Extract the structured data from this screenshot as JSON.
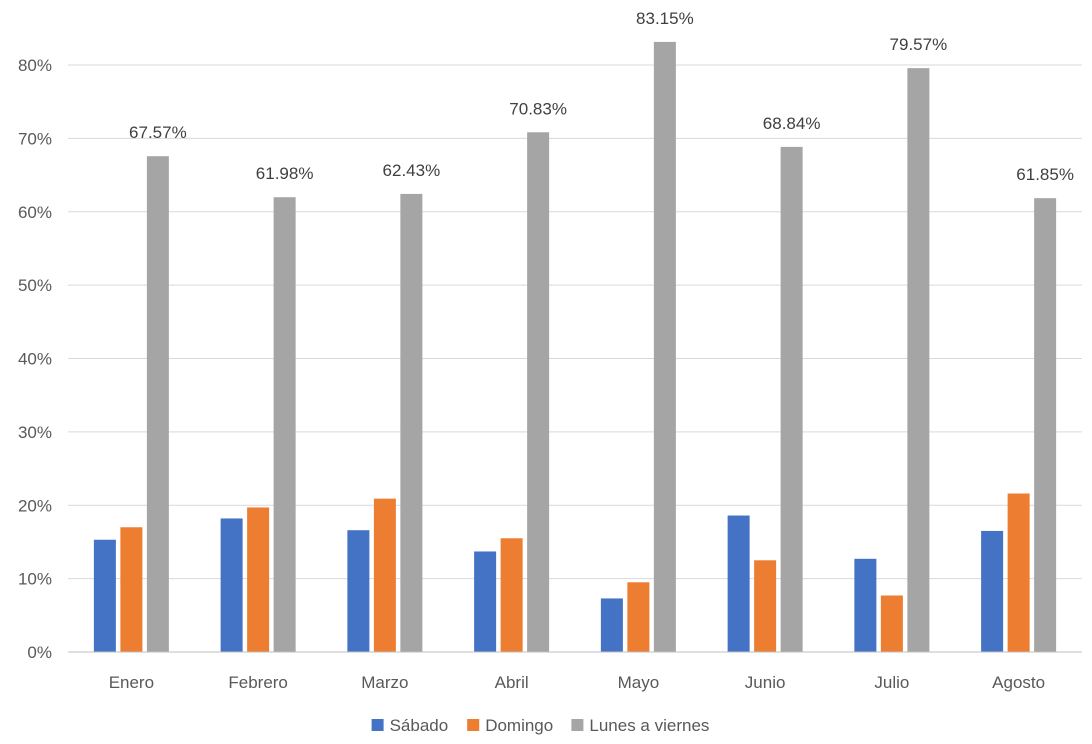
{
  "chart_data": {
    "type": "bar",
    "categories": [
      "Enero",
      "Febrero",
      "Marzo",
      "Abril",
      "Mayo",
      "Junio",
      "Julio",
      "Agosto"
    ],
    "series": [
      {
        "name": "Sábado",
        "color": "#4472c4",
        "values": [
          15.3,
          18.2,
          16.6,
          13.7,
          7.3,
          18.6,
          12.7,
          16.5
        ]
      },
      {
        "name": "Domingo",
        "color": "#ed7d31",
        "values": [
          17.0,
          19.7,
          20.9,
          15.5,
          9.5,
          12.5,
          7.7,
          21.6
        ]
      },
      {
        "name": "Lunes a viernes",
        "color": "#a5a5a5",
        "values": [
          67.57,
          61.98,
          62.43,
          70.83,
          83.15,
          68.84,
          79.57,
          61.85
        ],
        "data_labels": [
          "67.57%",
          "61.98%",
          "62.43%",
          "70.83%",
          "83.15%",
          "68.84%",
          "79.57%",
          "61.85%"
        ]
      }
    ],
    "yticks": [
      "0%",
      "10%",
      "20%",
      "30%",
      "40%",
      "50%",
      "60%",
      "70%",
      "80%"
    ],
    "ylim": [
      0,
      80
    ],
    "grid": true,
    "legend": "bottom",
    "title": "",
    "xlabel": "",
    "ylabel": ""
  }
}
